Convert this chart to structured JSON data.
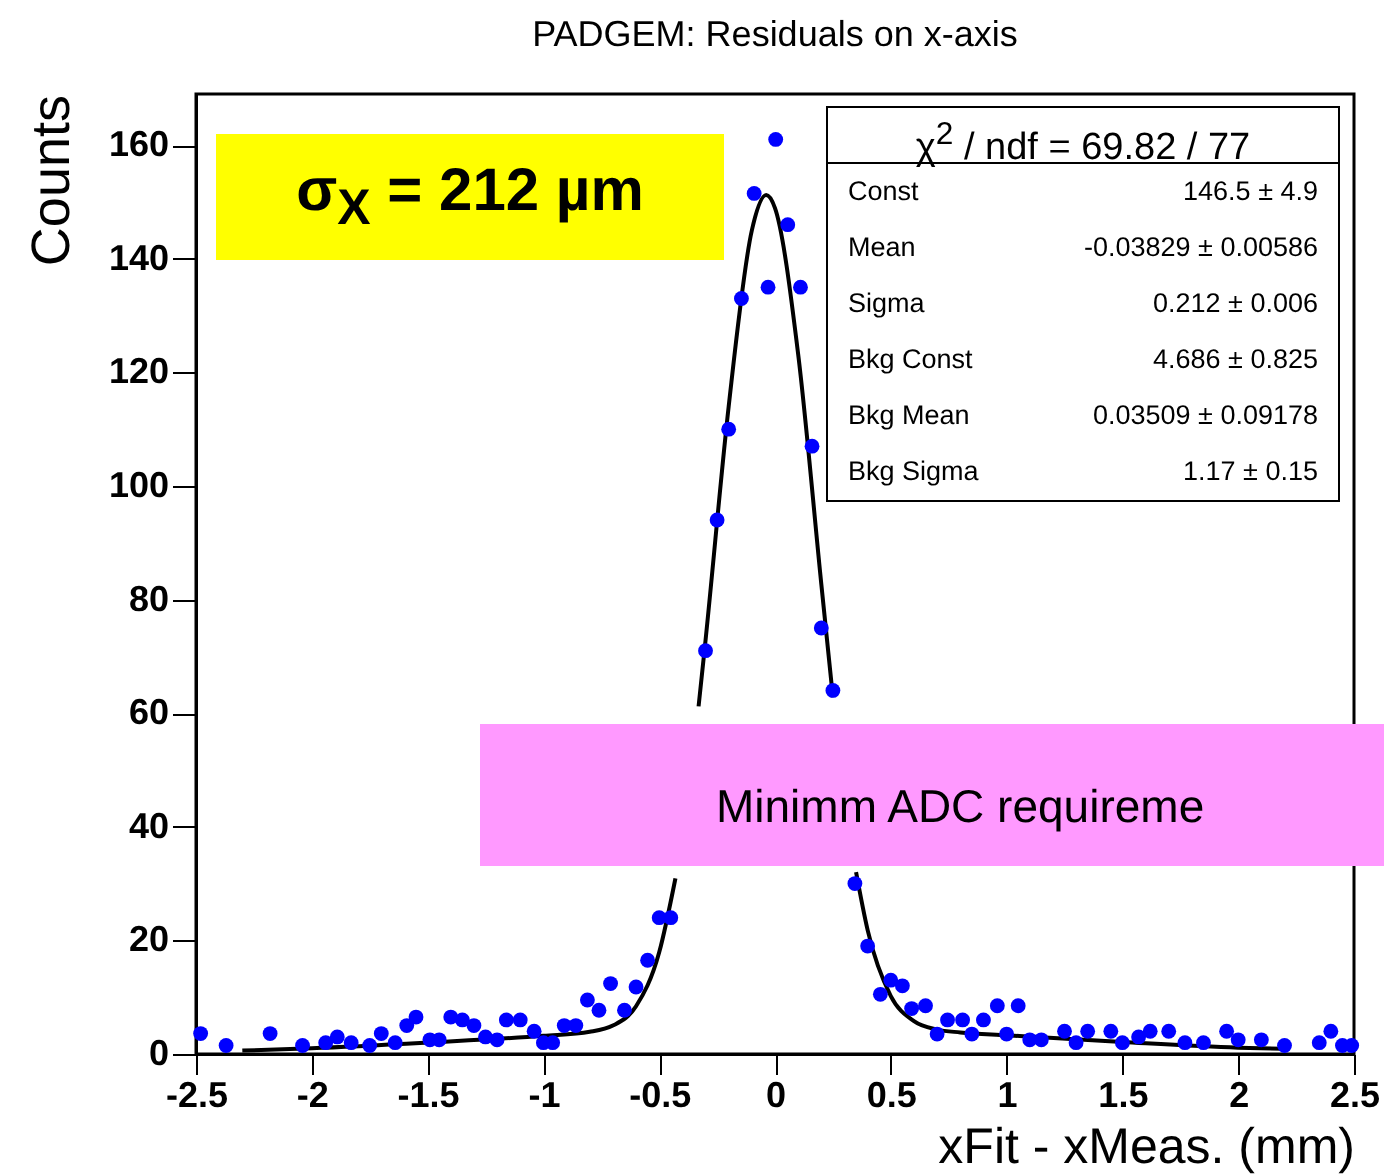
{
  "chart_data": {
    "type": "scatter",
    "title": "PADGEM: Residuals on x-axis",
    "xlabel": "xFit - xMeas. (mm)",
    "ylabel": "Counts",
    "annotations": [
      "σ$_{X}$ = 212 µm",
      "Minimm ADC requireme",
      "χ$^{2}$ / ndf = 69.82 / 77",
      "Const",
      "146.5 ± 4.9",
      "Mean",
      "-0.03829 ± 0.00586",
      "Sigma",
      "0.212 ± 0.006",
      "Bkg Const",
      "4.686 ± 0.825",
      "Bkg Mean",
      "0.03509 ± 0.09178",
      "Bkg Sigma",
      "1.17 ± 0.15"
    ],
    "xlim": [
      -2.5,
      2.5
    ],
    "xticks": [
      -2.5,
      -2,
      -1.5,
      -1,
      -0.5,
      0,
      0.5,
      1,
      1.5,
      2,
      2.5
    ],
    "ylim": [
      0,
      169
    ],
    "yticks": [
      0,
      20,
      40,
      60,
      80,
      100,
      120,
      140,
      160
    ],
    "marker": "circle",
    "grid": false,
    "series": [
      {
        "type": "scatter",
        "color": "#0000ff",
        "x": [
          -2.48,
          -2.37,
          -2.18,
          -2.04,
          -1.94,
          -1.89,
          -1.83,
          -1.75,
          -1.7,
          -1.64,
          -1.59,
          -1.55,
          -1.49,
          -1.45,
          -1.4,
          -1.35,
          -1.3,
          -1.25,
          -1.2,
          -1.16,
          -1.1,
          -1.04,
          -1.0,
          -0.96,
          -0.91,
          -0.86,
          -0.81,
          -0.76,
          -0.71,
          -0.65,
          -0.6,
          -0.55,
          -0.5,
          -0.45,
          -0.3,
          -0.25,
          -0.2,
          -0.145,
          -0.09,
          -0.03,
          0.003,
          0.055,
          0.11,
          0.16,
          0.2,
          0.25,
          0.345,
          0.4,
          0.455,
          0.5,
          0.55,
          0.59,
          0.65,
          0.7,
          0.745,
          0.81,
          0.85,
          0.9,
          0.96,
          1.0,
          1.05,
          1.1,
          1.15,
          1.25,
          1.3,
          1.35,
          1.45,
          1.5,
          1.57,
          1.62,
          1.7,
          1.77,
          1.85,
          1.95,
          2.0,
          2.1,
          2.2,
          2.35,
          2.4,
          2.45,
          2.49
        ],
        "values": [
          3.6,
          1.5,
          3.6,
          1.5,
          2,
          3,
          2,
          1.5,
          3.6,
          2,
          5,
          6.5,
          2.5,
          2.5,
          6.5,
          6,
          5,
          3,
          2.5,
          6,
          6,
          4,
          2,
          2,
          5,
          5,
          9.5,
          7.7,
          12.4,
          7.7,
          11.8,
          16.5,
          24,
          24,
          71,
          94,
          110,
          133,
          151.5,
          135,
          161,
          146,
          135,
          107,
          75,
          64,
          30,
          19,
          10.5,
          13,
          12,
          8,
          8.5,
          3.5,
          6,
          6,
          3.5,
          6,
          8.5,
          3.5,
          8.5,
          2.5,
          2.5,
          4,
          2,
          4,
          4,
          2,
          3,
          4,
          4,
          2,
          2,
          4,
          2.5,
          2.5,
          1.5,
          2,
          4,
          1.5,
          1.5
        ]
      },
      {
        "type": "line",
        "marker": "none",
        "color": "#000000",
        "x": [
          -2.3,
          -2,
          -1.5,
          -1,
          -0.8,
          -0.7,
          -0.6,
          -0.5,
          -0.43,
          -0.4,
          -0.33,
          -0.3,
          -0.2,
          -0.1,
          -0.038,
          0,
          0.1,
          0.2,
          0.25,
          0.3,
          0.35,
          0.4,
          0.5,
          0.6,
          0.7,
          0.8,
          1,
          1.5,
          2,
          2.2
        ],
        "values": [
          0.6,
          1.0,
          2.0,
          3.2,
          3.9,
          5.0,
          8.4,
          17.9,
          30.9,
          null,
          61.2,
          72.8,
          114.0,
          145.0,
          151.2,
          148.9,
          123.2,
          82.7,
          62.8,
          null,
          32.0,
          21.8,
          10.2,
          5.8,
          4.3,
          3.8,
          3.3,
          2.1,
          1.1,
          0.9
        ]
      }
    ]
  }
}
